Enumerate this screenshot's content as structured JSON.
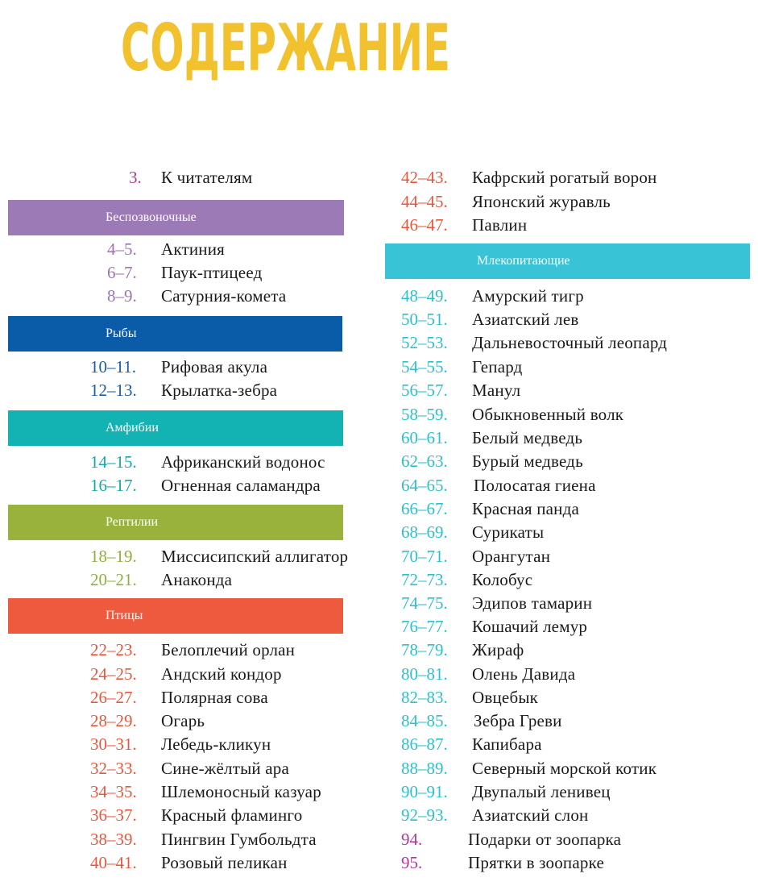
{
  "title": "СОДЕРЖАНИЕ",
  "colors": {
    "title": "#f2c12e",
    "invertebrates": "#9b7ab6",
    "fish": "#0a5ca8",
    "amphibians": "#13b3b3",
    "reptiles": "#98b23c",
    "birds": "#ee5a3e",
    "mammals": "#38c4d6"
  },
  "left": {
    "intro": {
      "page": "3.",
      "name": "К читателям"
    },
    "sections": [
      {
        "label": "Беспозвоночные",
        "items": [
          {
            "page": "4–5.",
            "name": "Актиния"
          },
          {
            "page": "6–7.",
            "name": "Паук-птицеед"
          },
          {
            "page": "8–9.",
            "name": "Сатурния-комета"
          }
        ]
      },
      {
        "label": "Рыбы",
        "items": [
          {
            "page": "10–11.",
            "name": "Рифовая акула"
          },
          {
            "page": "12–13.",
            "name": "Крылатка-зебра"
          }
        ]
      },
      {
        "label": "Амфибии",
        "items": [
          {
            "page": "14–15.",
            "name": "Африканский водонос"
          },
          {
            "page": "16–17.",
            "name": "Огненная саламандра"
          }
        ]
      },
      {
        "label": "Рептилии",
        "items": [
          {
            "page": "18–19.",
            "name": "Миссисипский аллигатор"
          },
          {
            "page": "20–21.",
            "name": "Анаконда"
          }
        ]
      },
      {
        "label": "Птицы",
        "items": [
          {
            "page": "22–23.",
            "name": "Белоплечий орлан"
          },
          {
            "page": "24–25.",
            "name": "Андский кондор"
          },
          {
            "page": "26–27.",
            "name": "Полярная сова"
          },
          {
            "page": "28–29.",
            "name": "Огарь"
          },
          {
            "page": "30–31.",
            "name": "Лебедь-кликун"
          },
          {
            "page": "32–33.",
            "name": "Сине-жёлтый ара"
          },
          {
            "page": "34–35.",
            "name": "Шлемоносный казуар"
          },
          {
            "page": "36–37.",
            "name": "Красный фламинго"
          },
          {
            "page": "38–39.",
            "name": "Пингвин Гумбольдта"
          },
          {
            "page": "40–41.",
            "name": "Розовый пеликан"
          }
        ]
      }
    ]
  },
  "right": {
    "birds_continued": [
      {
        "page": "42–43.",
        "name": "Кафрский рогатый ворон"
      },
      {
        "page": "44–45.",
        "name": "Японский журавль"
      },
      {
        "page": "46–47.",
        "name": "Павлин"
      }
    ],
    "mammals": {
      "label": "Млекопитающие",
      "items": [
        {
          "page": "48–49.",
          "name": "Амурский тигр"
        },
        {
          "page": "50–51.",
          "name": "Азиатский лев"
        },
        {
          "page": "52–53.",
          "name": "Дальневосточный леопард"
        },
        {
          "page": "54–55.",
          "name": "Гепард"
        },
        {
          "page": "56–57.",
          "name": "Манул"
        },
        {
          "page": "58–59.",
          "name": "Обыкновенный волк"
        },
        {
          "page": "60–61.",
          "name": "Белый медведь"
        },
        {
          "page": "62–63.",
          "name": "Бурый медведь"
        },
        {
          "page": "64–65.",
          "name": "Полосатая гиена"
        },
        {
          "page": "66–67.",
          "name": "Красная панда"
        },
        {
          "page": "68–69.",
          "name": "Сурикаты"
        },
        {
          "page": "70–71.",
          "name": "Орангутан"
        },
        {
          "page": "72–73.",
          "name": "Колобус"
        },
        {
          "page": "74–75.",
          "name": "Эдипов тамарин"
        },
        {
          "page": "76–77.",
          "name": "Кошачий лемур"
        },
        {
          "page": "78–79.",
          "name": "Жираф"
        },
        {
          "page": "80–81.",
          "name": "Олень Давида"
        },
        {
          "page": "82–83.",
          "name": "Овцебык"
        },
        {
          "page": "84–85.",
          "name": "Зебра Греви"
        },
        {
          "page": "86–87.",
          "name": "Капибара"
        },
        {
          "page": "88–89.",
          "name": "Северный морской котик"
        },
        {
          "page": "90–91.",
          "name": "Двупалый ленивец"
        },
        {
          "page": "92–93.",
          "name": "Азиатский слон"
        }
      ]
    },
    "extras": [
      {
        "page": "94.",
        "name": "Подарки от зоопарка"
      },
      {
        "page": "95.",
        "name": "Прятки в зоопарке"
      }
    ]
  }
}
